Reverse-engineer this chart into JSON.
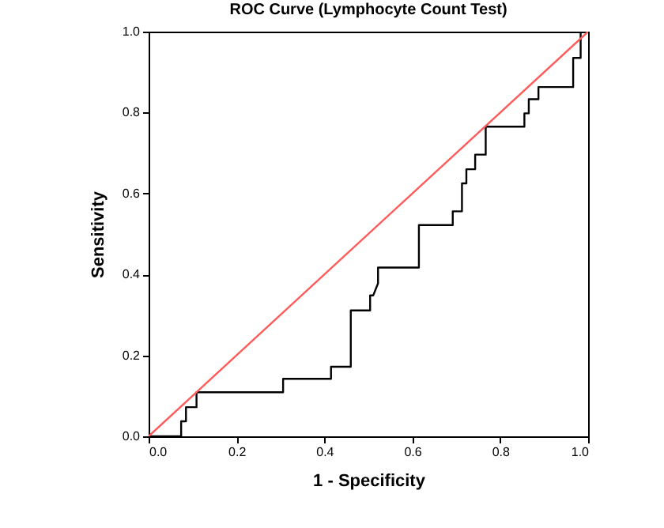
{
  "chart_data": {
    "type": "line",
    "title": "ROC Curve (Lymphocyte Count Test)",
    "xlabel": "1 - Specificity",
    "ylabel": "Sensitivity",
    "series": [
      {
        "color": "#000000",
        "x": [
          0,
          0.074,
          0.074,
          0.085,
          0.085,
          0.109,
          0.109,
          0.306,
          0.306,
          0.415,
          0.415,
          0.46,
          0.46,
          0.504,
          0.504,
          0.511,
          0.522,
          0.522,
          0.615,
          0.615,
          0.692,
          0.692,
          0.713,
          0.713,
          0.723,
          0.723,
          0.743,
          0.743,
          0.767,
          0.767,
          0.855,
          0.855,
          0.865,
          0.865,
          0.887,
          0.887,
          0.966,
          0.966,
          0.983,
          0.983,
          1
        ],
        "values": [
          0,
          0,
          0.037,
          0.037,
          0.072,
          0.072,
          0.109,
          0.109,
          0.142,
          0.142,
          0.172,
          0.172,
          0.311,
          0.311,
          0.348,
          0.348,
          0.378,
          0.417,
          0.417,
          0.522,
          0.522,
          0.556,
          0.556,
          0.625,
          0.625,
          0.66,
          0.66,
          0.696,
          0.696,
          0.765,
          0.765,
          0.798,
          0.798,
          0.833,
          0.833,
          0.863,
          0.863,
          0.935,
          0.935,
          1,
          1
        ]
      },
      {
        "color": "#ff5a5a",
        "x": [
          0,
          1
        ],
        "values": [
          0,
          1
        ]
      }
    ],
    "xlim": [
      0,
      1
    ],
    "ylim": [
      0,
      1
    ],
    "xticks": [
      {
        "value": 0,
        "label": "0.0"
      },
      {
        "value": 0.2,
        "label": "0.2"
      },
      {
        "value": 0.4,
        "label": "0.4"
      },
      {
        "value": 0.6,
        "label": "0.6"
      },
      {
        "value": 0.8,
        "label": "0.8"
      },
      {
        "value": 1,
        "label": "1.0"
      }
    ],
    "yticks": [
      {
        "value": 0,
        "label": "0.0"
      },
      {
        "value": 0.2,
        "label": "0.2"
      },
      {
        "value": 0.4,
        "label": "0.4"
      },
      {
        "value": 0.6,
        "label": "0.6"
      },
      {
        "value": 0.8,
        "label": "0.8"
      },
      {
        "value": 1,
        "label": "1.0"
      }
    ],
    "grid": false,
    "marker": "none",
    "line_style": "solid"
  }
}
